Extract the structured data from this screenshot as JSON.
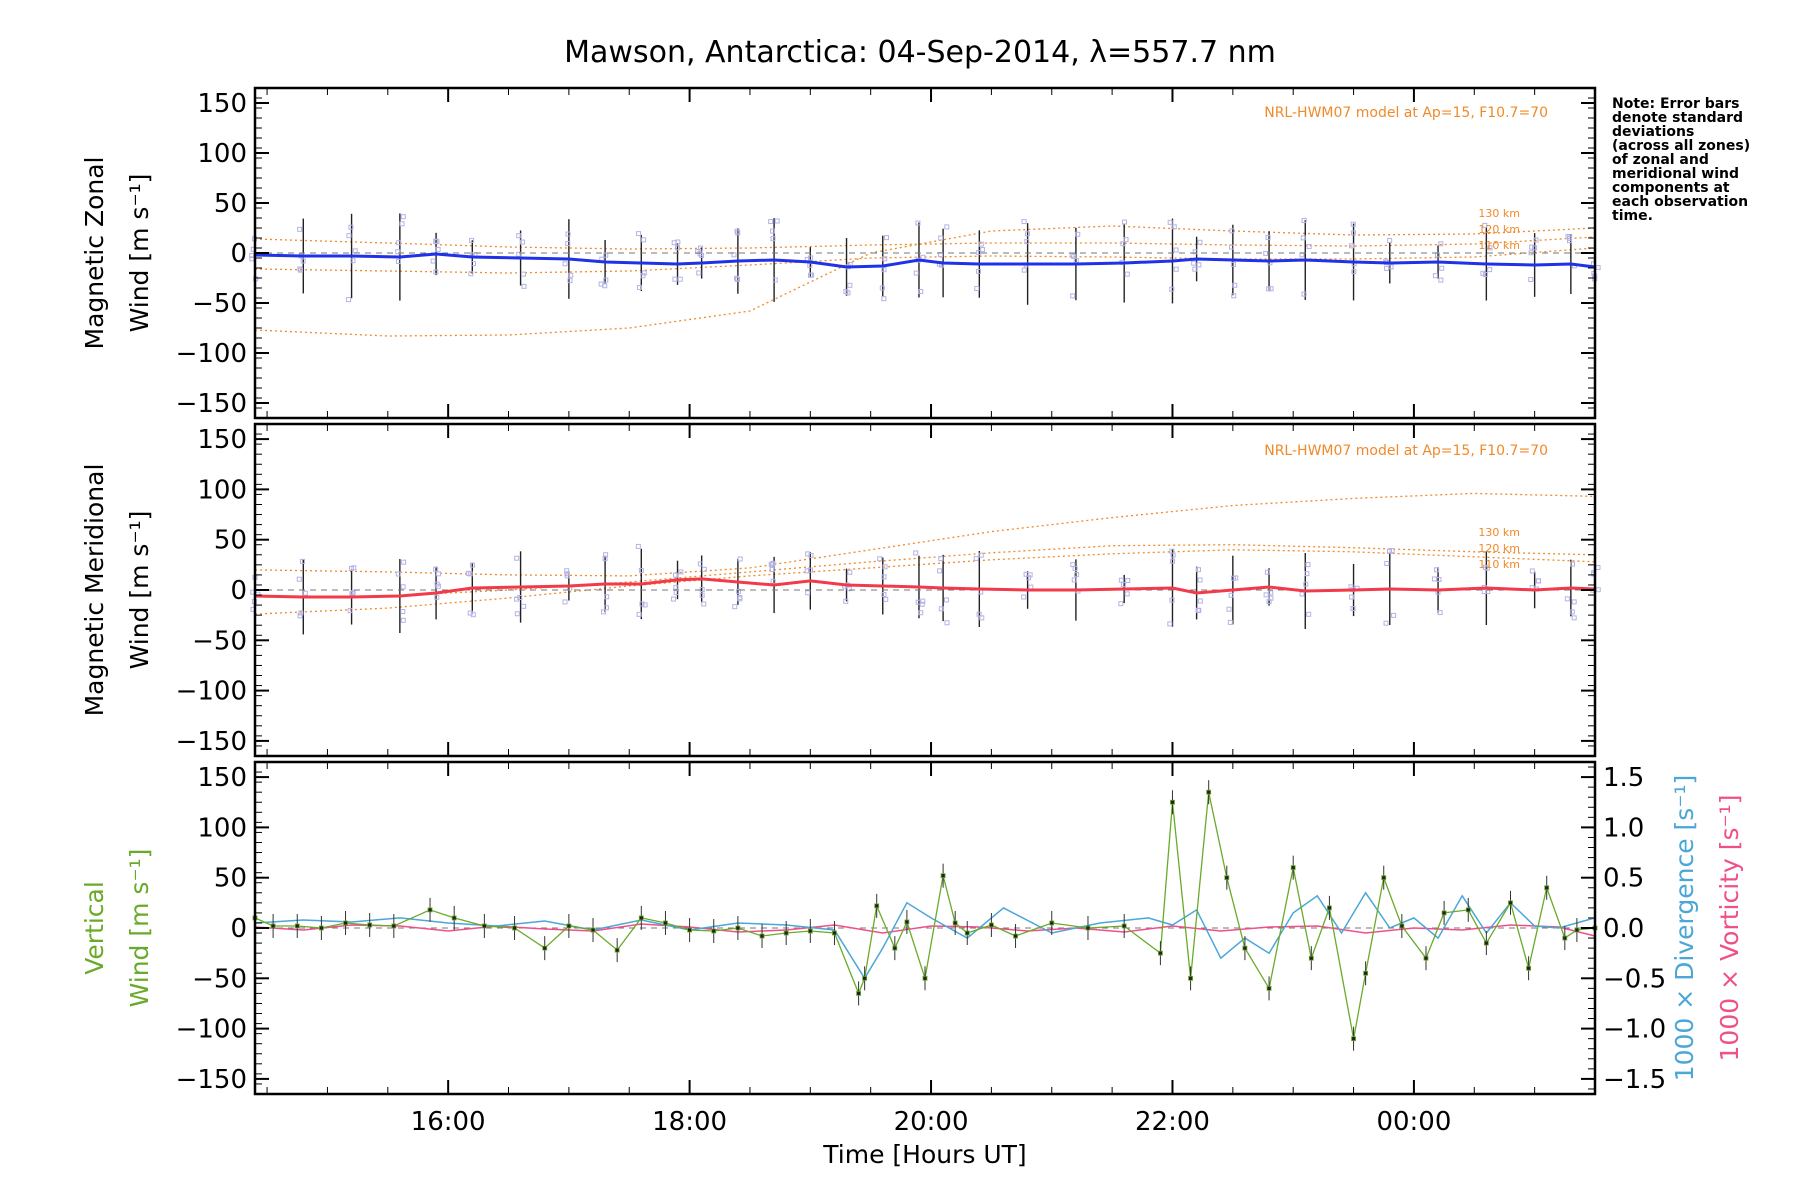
{
  "chart_data": {
    "type": "line",
    "title": "Mawson, Antarctica: 04-Sep-2014, λ=557.7 nm",
    "xlabel": "Time [Hours UT]",
    "xlim": [
      14.4,
      25.5
    ],
    "x_ticks": [
      16,
      18,
      20,
      22,
      24
    ],
    "x_tick_labels": [
      "16:00",
      "18:00",
      "20:00",
      "22:00",
      "00:00"
    ],
    "note": [
      "Note: Error bars",
      "denote standard",
      "deviations",
      "(across all zones)",
      "of zonal and",
      "meridional wind",
      "components at",
      "each observation",
      "time."
    ],
    "colors": {
      "zonal": "#1f32e8",
      "meridional": "#f23a4a",
      "model": "#f08a2a",
      "vertical": "#6aaa2a",
      "divergence": "#4aa7d8",
      "vorticity": "#f0508a",
      "zone_points": "#b3b3e6"
    },
    "panels": [
      {
        "id": "zonal",
        "ylabel_lines": [
          "Magnetic Zonal",
          "Wind [m s⁻¹]"
        ],
        "ylim": [
          -165,
          165
        ],
        "y_ticks": [
          150,
          100,
          50,
          0,
          -50,
          -100,
          -150
        ],
        "y_tick_labels": [
          "150",
          "100",
          "50",
          "0",
          "−50",
          "−100",
          "−150"
        ],
        "model_label": "NRL-HWM07 model at Ap=15, F10.7=70",
        "model_altitude_labels": [
          "130 km",
          "120 km",
          "110 km"
        ],
        "series": [
          {
            "name": "Magnetic Zonal Wind",
            "x": [
              14.4,
              14.8,
              15.2,
              15.6,
              15.9,
              16.2,
              16.6,
              17.0,
              17.3,
              17.6,
              17.9,
              18.1,
              18.4,
              18.7,
              19.0,
              19.3,
              19.6,
              19.9,
              20.1,
              20.4,
              20.8,
              21.2,
              21.6,
              22.0,
              22.2,
              22.5,
              22.8,
              23.1,
              23.5,
              23.8,
              24.2,
              24.6,
              25.0,
              25.3,
              25.5
            ],
            "y": [
              -2,
              -3,
              -3,
              -4,
              -1,
              -4,
              -5,
              -6,
              -9,
              -10,
              -11,
              -10,
              -8,
              -7,
              -9,
              -14,
              -13,
              -7,
              -10,
              -11,
              -11,
              -11,
              -10,
              -8,
              -6,
              -7,
              -8,
              -7,
              -9,
              -10,
              -9,
              -11,
              -12,
              -11,
              -14
            ]
          },
          {
            "name": "Model 130 km",
            "x": [
              14.4,
              15.5,
              16.5,
              17.5,
              18.5,
              19.5,
              20.5,
              21.5,
              22.5,
              23.5,
              24.5,
              25.5
            ],
            "y": [
              -77,
              -83,
              -82,
              -75,
              -58,
              0,
              22,
              27,
              22,
              18,
              19,
              25
            ]
          },
          {
            "name": "Model 120 km",
            "x": [
              14.4,
              15.5,
              16.5,
              17.5,
              18.5,
              19.5,
              20.5,
              21.5,
              22.5,
              23.5,
              24.5,
              25.5
            ],
            "y": [
              14,
              10,
              6,
              4,
              5,
              8,
              10,
              10,
              8,
              7,
              9,
              16
            ]
          },
          {
            "name": "Model 110 km",
            "x": [
              14.4,
              15.5,
              16.5,
              17.5,
              18.5,
              19.5,
              20.5,
              21.5,
              22.5,
              23.5,
              24.5,
              25.5
            ],
            "y": [
              -16,
              -18,
              -20,
              -18,
              -12,
              -5,
              -3,
              -4,
              -6,
              -6,
              -4,
              5
            ]
          }
        ]
      },
      {
        "id": "meridional",
        "ylabel_lines": [
          "Magnetic Meridional",
          "Wind [m s⁻¹]"
        ],
        "ylim": [
          -165,
          165
        ],
        "y_ticks": [
          150,
          100,
          50,
          0,
          -50,
          -100,
          -150
        ],
        "y_tick_labels": [
          "150",
          "100",
          "50",
          "0",
          "−50",
          "−100",
          "−150"
        ],
        "model_label": "NRL-HWM07 model at Ap=15, F10.7=70",
        "model_altitude_labels": [
          "130 km",
          "120 km",
          "110 km"
        ],
        "series": [
          {
            "name": "Magnetic Meridional Wind",
            "x": [
              14.4,
              14.8,
              15.2,
              15.6,
              15.9,
              16.2,
              16.6,
              17.0,
              17.3,
              17.6,
              17.9,
              18.1,
              18.4,
              18.7,
              19.0,
              19.3,
              19.6,
              19.9,
              20.1,
              20.4,
              20.8,
              21.2,
              21.6,
              22.0,
              22.2,
              22.5,
              22.8,
              23.1,
              23.5,
              23.8,
              24.2,
              24.6,
              25.0,
              25.3,
              25.5
            ],
            "y": [
              -6,
              -7,
              -7,
              -6,
              -3,
              2,
              3,
              4,
              6,
              6,
              10,
              11,
              8,
              5,
              9,
              5,
              4,
              3,
              2,
              1,
              0,
              0,
              1,
              2,
              -3,
              0,
              3,
              -1,
              0,
              1,
              0,
              2,
              0,
              2,
              1
            ]
          },
          {
            "name": "Model 130 km",
            "x": [
              14.4,
              15.5,
              16.5,
              17.5,
              18.5,
              19.5,
              20.5,
              21.5,
              22.5,
              23.5,
              24.5,
              25.5
            ],
            "y": [
              20,
              18,
              15,
              14,
              22,
              40,
              58,
              72,
              84,
              91,
              96,
              93
            ]
          },
          {
            "name": "Model 120 km",
            "x": [
              14.4,
              15.5,
              16.5,
              17.5,
              18.5,
              19.5,
              20.5,
              21.5,
              22.5,
              23.5,
              24.5,
              25.5
            ],
            "y": [
              -7,
              -6,
              0,
              8,
              18,
              28,
              37,
              44,
              45,
              42,
              38,
              35
            ]
          },
          {
            "name": "Model 110 km",
            "x": [
              14.4,
              15.5,
              16.5,
              17.5,
              18.5,
              19.5,
              20.5,
              21.5,
              22.5,
              23.5,
              24.5,
              25.5
            ],
            "y": [
              -24,
              -18,
              -8,
              4,
              14,
              22,
              30,
              36,
              40,
              38,
              33,
              28
            ]
          }
        ]
      },
      {
        "id": "vertical",
        "ylabel_lines": [
          "Vertical",
          "Wind [m s⁻¹]"
        ],
        "ylim": [
          -165,
          165
        ],
        "y_ticks": [
          150,
          100,
          50,
          0,
          -50,
          -100,
          -150
        ],
        "y_tick_labels": [
          "150",
          "100",
          "50",
          "0",
          "−50",
          "−100",
          "−150"
        ],
        "y2label_divergence": "1000 × Divergence [s⁻¹]",
        "y2label_vorticity": "1000 × Vorticity [s⁻¹]",
        "y2lim": [
          -1.65,
          1.65
        ],
        "y2_ticks": [
          1.5,
          1.0,
          0.5,
          0.0,
          -0.5,
          -1.0,
          -1.5
        ],
        "y2_tick_labels": [
          "1.5",
          "1.0",
          "0.5",
          "0.0",
          "−0.5",
          "−1.0",
          "−1.5"
        ],
        "series": [
          {
            "name": "Vertical Wind",
            "x": [
              14.4,
              14.55,
              14.75,
              14.95,
              15.15,
              15.35,
              15.55,
              15.85,
              16.05,
              16.3,
              16.55,
              16.8,
              17.0,
              17.2,
              17.4,
              17.6,
              17.8,
              18.0,
              18.2,
              18.4,
              18.6,
              18.8,
              19.0,
              19.2,
              19.4,
              19.45,
              19.55,
              19.7,
              19.8,
              19.95,
              20.1,
              20.2,
              20.3,
              20.5,
              20.7,
              21.0,
              21.3,
              21.6,
              21.9,
              22.0,
              22.15,
              22.3,
              22.45,
              22.6,
              22.8,
              23.0,
              23.15,
              23.3,
              23.5,
              23.6,
              23.75,
              23.9,
              24.1,
              24.25,
              24.45,
              24.6,
              24.8,
              24.95,
              25.1,
              25.25,
              25.35,
              25.5
            ],
            "y": [
              10,
              2,
              2,
              0,
              5,
              3,
              2,
              18,
              10,
              2,
              0,
              -20,
              2,
              -2,
              -22,
              10,
              5,
              -2,
              -3,
              0,
              -8,
              -5,
              -3,
              -5,
              -65,
              -50,
              22,
              -20,
              6,
              -50,
              52,
              5,
              -5,
              3,
              -8,
              5,
              0,
              2,
              -25,
              125,
              -50,
              135,
              50,
              -20,
              -60,
              60,
              -30,
              20,
              -110,
              -45,
              50,
              2,
              -30,
              15,
              18,
              -15,
              25,
              -40,
              40,
              -10,
              -2,
              0
            ]
          },
          {
            "name": "1000 × Divergence",
            "x": [
              14.4,
              14.8,
              15.2,
              15.6,
              16.0,
              16.4,
              16.8,
              17.2,
              17.6,
              18.0,
              18.4,
              18.8,
              19.2,
              19.45,
              19.6,
              19.8,
              20.0,
              20.3,
              20.6,
              21.0,
              21.4,
              21.8,
              22.0,
              22.2,
              22.4,
              22.6,
              22.8,
              23.0,
              23.2,
              23.4,
              23.6,
              23.8,
              24.0,
              24.2,
              24.4,
              24.6,
              24.8,
              25.0,
              25.2,
              25.5
            ],
            "y": [
              0.05,
              0.08,
              0.06,
              0.1,
              0.05,
              0.02,
              0.07,
              -0.02,
              0.08,
              -0.02,
              0.05,
              0.03,
              -0.02,
              -0.5,
              -0.2,
              0.25,
              0.1,
              -0.1,
              0.2,
              -0.05,
              0.05,
              0.1,
              0.03,
              0.18,
              -0.3,
              -0.1,
              -0.25,
              0.15,
              0.32,
              -0.05,
              0.35,
              0.0,
              0.1,
              -0.1,
              0.32,
              -0.05,
              0.25,
              0.02,
              0.0,
              0.1
            ]
          },
          {
            "name": "1000 × Vorticity",
            "x": [
              14.4,
              14.8,
              15.2,
              15.6,
              16.0,
              16.4,
              16.8,
              17.2,
              17.6,
              18.0,
              18.4,
              18.8,
              19.2,
              19.6,
              20.0,
              20.4,
              20.8,
              21.2,
              21.6,
              22.0,
              22.4,
              22.8,
              23.2,
              23.6,
              24.0,
              24.4,
              24.8,
              25.2,
              25.5
            ],
            "y": [
              0.01,
              -0.02,
              0.03,
              0.02,
              -0.03,
              0.02,
              -0.01,
              -0.03,
              0.04,
              0.01,
              -0.04,
              -0.02,
              0.03,
              -0.05,
              0.02,
              0.01,
              -0.03,
              0.0,
              -0.04,
              0.02,
              -0.03,
              0.01,
              0.02,
              -0.05,
              0.0,
              -0.02,
              0.03,
              0.01,
              -0.08
            ]
          }
        ]
      }
    ]
  }
}
